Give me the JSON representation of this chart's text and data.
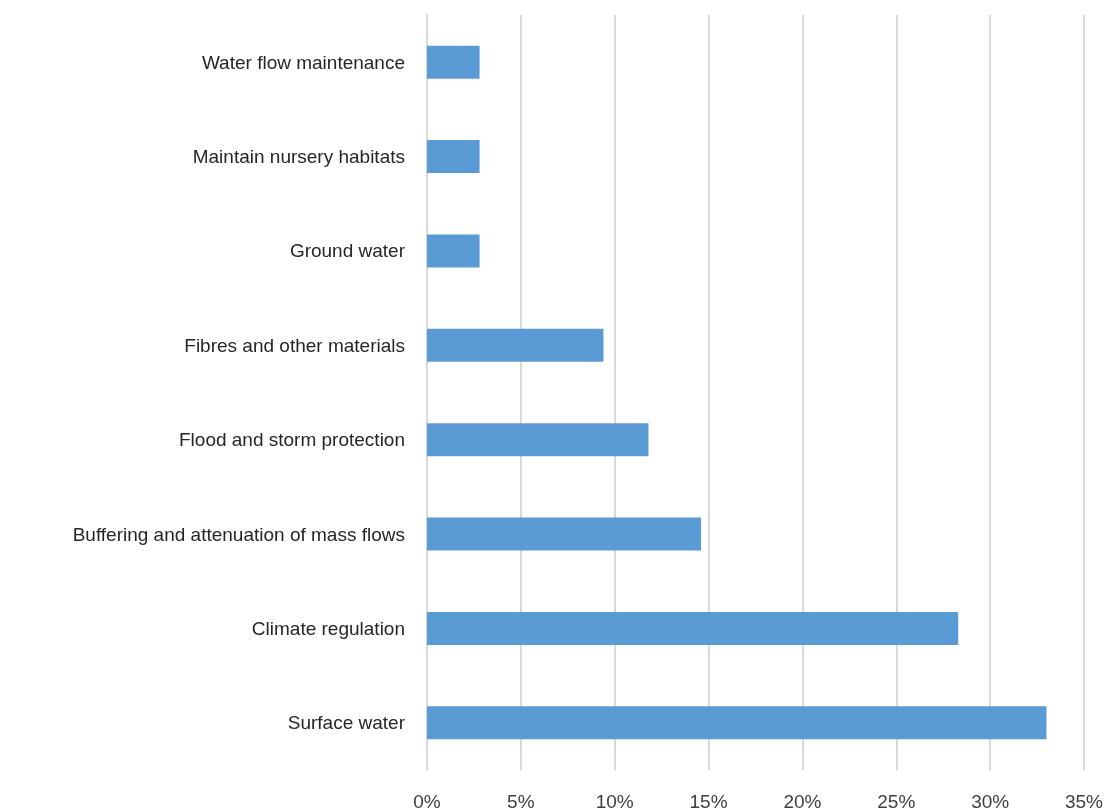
{
  "chart_data": {
    "type": "bar",
    "orientation": "horizontal",
    "categories": [
      "Water flow maintenance",
      "Maintain nursery habitats",
      "Ground water",
      "Fibres and other materials",
      "Flood and storm protection",
      "Buffering and attenuation of mass flows",
      "Climate regulation",
      "Surface water"
    ],
    "values": [
      2.8,
      2.8,
      2.8,
      9.4,
      11.8,
      14.6,
      28.3,
      33.0
    ],
    "color": "#5b9bd5",
    "xlim": [
      0,
      35
    ],
    "xticks": [
      {
        "value": 0,
        "label": "0%"
      },
      {
        "value": 5,
        "label": "5%"
      },
      {
        "value": 10,
        "label": "10%"
      },
      {
        "value": 15,
        "label": "15%"
      },
      {
        "value": 20,
        "label": "20%"
      },
      {
        "value": 25,
        "label": "25%"
      },
      {
        "value": 30,
        "label": "30%"
      },
      {
        "value": 35,
        "label": "35%"
      }
    ],
    "grid": "x"
  }
}
